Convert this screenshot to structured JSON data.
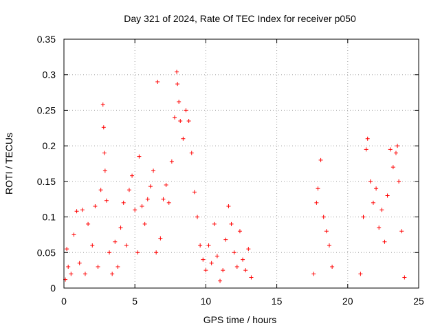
{
  "chart_data": {
    "type": "scatter",
    "title": "Day 321 of 2024, Rate Of TEC Index for receiver p050",
    "xlabel": "GPS time / hours",
    "ylabel": "ROTI / TECUs",
    "xlim": [
      0,
      25
    ],
    "ylim": [
      0,
      0.35
    ],
    "xticks": [
      0,
      5,
      10,
      15,
      20,
      25
    ],
    "xtick_labels": [
      "0",
      "5",
      "10",
      "15",
      "20",
      "25"
    ],
    "yticks": [
      0,
      0.05,
      0.1,
      0.15,
      0.2,
      0.25,
      0.3,
      0.35
    ],
    "ytick_labels": [
      "0",
      "0.05",
      "0.1",
      "0.15",
      "0.2",
      "0.25",
      "0.3",
      "0.35"
    ],
    "grid": true,
    "marker": "+",
    "marker_color": "#ff0000",
    "series": [
      {
        "name": "ROTI",
        "points": [
          [
            0.1,
            0.012
          ],
          [
            0.2,
            0.055
          ],
          [
            0.3,
            0.03
          ],
          [
            0.5,
            0.02
          ],
          [
            0.7,
            0.075
          ],
          [
            0.9,
            0.108
          ],
          [
            1.1,
            0.035
          ],
          [
            1.3,
            0.11
          ],
          [
            1.5,
            0.02
          ],
          [
            1.7,
            0.09
          ],
          [
            2.0,
            0.06
          ],
          [
            2.2,
            0.115
          ],
          [
            2.4,
            0.03
          ],
          [
            2.6,
            0.138
          ],
          [
            2.75,
            0.258
          ],
          [
            2.8,
            0.226
          ],
          [
            2.85,
            0.19
          ],
          [
            2.9,
            0.165
          ],
          [
            3.0,
            0.123
          ],
          [
            3.2,
            0.05
          ],
          [
            3.4,
            0.02
          ],
          [
            3.6,
            0.065
          ],
          [
            3.8,
            0.03
          ],
          [
            4.0,
            0.085
          ],
          [
            4.2,
            0.12
          ],
          [
            4.4,
            0.06
          ],
          [
            4.6,
            0.138
          ],
          [
            4.8,
            0.158
          ],
          [
            5.0,
            0.11
          ],
          [
            5.2,
            0.05
          ],
          [
            5.3,
            0.185
          ],
          [
            5.5,
            0.115
          ],
          [
            5.7,
            0.09
          ],
          [
            5.9,
            0.125
          ],
          [
            6.1,
            0.143
          ],
          [
            6.3,
            0.165
          ],
          [
            6.5,
            0.05
          ],
          [
            6.6,
            0.29
          ],
          [
            6.8,
            0.07
          ],
          [
            7.0,
            0.125
          ],
          [
            7.2,
            0.145
          ],
          [
            7.4,
            0.12
          ],
          [
            7.6,
            0.178
          ],
          [
            7.8,
            0.24
          ],
          [
            7.95,
            0.304
          ],
          [
            8.0,
            0.287
          ],
          [
            8.1,
            0.262
          ],
          [
            8.2,
            0.235
          ],
          [
            8.4,
            0.21
          ],
          [
            8.6,
            0.25
          ],
          [
            8.8,
            0.235
          ],
          [
            9.0,
            0.19
          ],
          [
            9.2,
            0.135
          ],
          [
            9.4,
            0.1
          ],
          [
            9.6,
            0.06
          ],
          [
            9.8,
            0.04
          ],
          [
            10.0,
            0.025
          ],
          [
            10.2,
            0.06
          ],
          [
            10.4,
            0.035
          ],
          [
            10.6,
            0.09
          ],
          [
            10.8,
            0.045
          ],
          [
            11.0,
            0.01
          ],
          [
            11.2,
            0.025
          ],
          [
            11.4,
            0.068
          ],
          [
            11.6,
            0.115
          ],
          [
            11.8,
            0.09
          ],
          [
            12.0,
            0.05
          ],
          [
            12.2,
            0.03
          ],
          [
            12.4,
            0.08
          ],
          [
            12.6,
            0.04
          ],
          [
            12.8,
            0.025
          ],
          [
            13.0,
            0.055
          ],
          [
            13.2,
            0.015
          ],
          [
            17.6,
            0.02
          ],
          [
            17.8,
            0.12
          ],
          [
            17.9,
            0.14
          ],
          [
            18.1,
            0.18
          ],
          [
            18.3,
            0.1
          ],
          [
            18.5,
            0.08
          ],
          [
            18.7,
            0.06
          ],
          [
            18.9,
            0.03
          ],
          [
            20.9,
            0.02
          ],
          [
            21.1,
            0.1
          ],
          [
            21.3,
            0.195
          ],
          [
            21.4,
            0.21
          ],
          [
            21.6,
            0.15
          ],
          [
            21.8,
            0.12
          ],
          [
            22.0,
            0.14
          ],
          [
            22.2,
            0.085
          ],
          [
            22.4,
            0.11
          ],
          [
            22.6,
            0.065
          ],
          [
            22.8,
            0.13
          ],
          [
            23.0,
            0.195
          ],
          [
            23.2,
            0.17
          ],
          [
            23.4,
            0.19
          ],
          [
            23.5,
            0.2
          ],
          [
            23.6,
            0.15
          ],
          [
            23.8,
            0.08
          ],
          [
            24.0,
            0.015
          ]
        ]
      }
    ]
  }
}
